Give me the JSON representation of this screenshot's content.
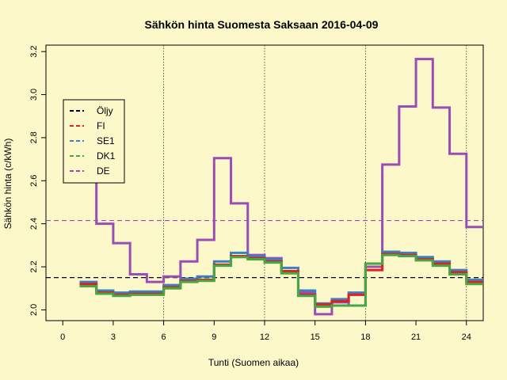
{
  "chart_data": {
    "type": "line",
    "style": "step",
    "title": "Sähkön hinta Suomesta Saksaan 2016-04-09",
    "xlabel": "Tunti (Suomen aikaa)",
    "ylabel": "Sähkön hinta (c/kWh)",
    "xlim": [
      -1,
      25
    ],
    "ylim": [
      1.95,
      3.23
    ],
    "x_ticks": [
      0,
      3,
      6,
      9,
      12,
      15,
      18,
      21,
      24
    ],
    "y_ticks": [
      2.0,
      2.2,
      2.4,
      2.6,
      2.8,
      3.0,
      3.2
    ],
    "vertical_reference_lines": [
      6,
      12,
      18,
      24
    ],
    "legend_position": "top-left",
    "x": [
      1,
      2,
      3,
      4,
      5,
      6,
      7,
      8,
      9,
      10,
      11,
      12,
      13,
      14,
      15,
      16,
      17,
      18,
      19,
      20,
      21,
      22,
      23,
      24,
      25
    ],
    "series": [
      {
        "name": "Öljy",
        "color": "#000000",
        "dash": true,
        "width": 1.2,
        "values": [
          2.15,
          2.15,
          2.15,
          2.15,
          2.15,
          2.15,
          2.15,
          2.15,
          2.15,
          2.15,
          2.15,
          2.15,
          2.15,
          2.15,
          2.15,
          2.15,
          2.15,
          2.15,
          2.15,
          2.15,
          2.15,
          2.15,
          2.15,
          2.15,
          2.15
        ]
      },
      {
        "name": "DE",
        "color": "#9b4db5",
        "dash": true,
        "width": 1.2,
        "values": [
          2.415,
          2.415,
          2.415,
          2.415,
          2.415,
          2.415,
          2.415,
          2.415,
          2.415,
          2.415,
          2.415,
          2.415,
          2.415,
          2.415,
          2.415,
          2.415,
          2.415,
          2.415,
          2.415,
          2.415,
          2.415,
          2.415,
          2.415,
          2.415,
          2.415
        ]
      },
      {
        "name": "DE",
        "color": "#9b4db5",
        "dash": false,
        "width": 3,
        "values": [
          2.7,
          2.4,
          2.31,
          2.165,
          2.13,
          2.155,
          2.225,
          2.325,
          2.705,
          2.495,
          2.255,
          2.24,
          2.18,
          2.08,
          1.98,
          2.035,
          2.02,
          2.2,
          2.675,
          2.945,
          3.165,
          2.94,
          2.725,
          2.385,
          2.385
        ]
      },
      {
        "name": "SE1",
        "color": "#3b7fc4",
        "dash": false,
        "width": 3,
        "values": [
          2.13,
          2.09,
          2.08,
          2.085,
          2.085,
          2.115,
          2.145,
          2.155,
          2.225,
          2.265,
          2.25,
          2.235,
          2.195,
          2.09,
          2.03,
          2.05,
          2.08,
          2.215,
          2.27,
          2.265,
          2.245,
          2.225,
          2.185,
          2.14,
          2.14
        ]
      },
      {
        "name": "FI",
        "color": "#e0201b",
        "dash": false,
        "width": 3,
        "values": [
          2.12,
          2.08,
          2.07,
          2.075,
          2.075,
          2.105,
          2.135,
          2.14,
          2.21,
          2.25,
          2.24,
          2.225,
          2.18,
          2.07,
          2.025,
          2.04,
          2.07,
          2.185,
          2.26,
          2.255,
          2.235,
          2.215,
          2.175,
          2.13,
          2.13
        ]
      },
      {
        "name": "DK1",
        "color": "#44a844",
        "dash": false,
        "width": 3,
        "values": [
          2.11,
          2.075,
          2.065,
          2.07,
          2.07,
          2.1,
          2.13,
          2.135,
          2.205,
          2.245,
          2.235,
          2.22,
          2.17,
          2.065,
          2.015,
          2.02,
          2.02,
          2.215,
          2.255,
          2.25,
          2.23,
          2.205,
          2.165,
          2.12,
          2.12
        ]
      }
    ],
    "legend": [
      {
        "label": "Öljy",
        "color": "#000000"
      },
      {
        "label": "FI",
        "color": "#e0201b"
      },
      {
        "label": "SE1",
        "color": "#3b7fc4"
      },
      {
        "label": "DK1",
        "color": "#44a844"
      },
      {
        "label": "DE",
        "color": "#9b4db5"
      }
    ]
  }
}
